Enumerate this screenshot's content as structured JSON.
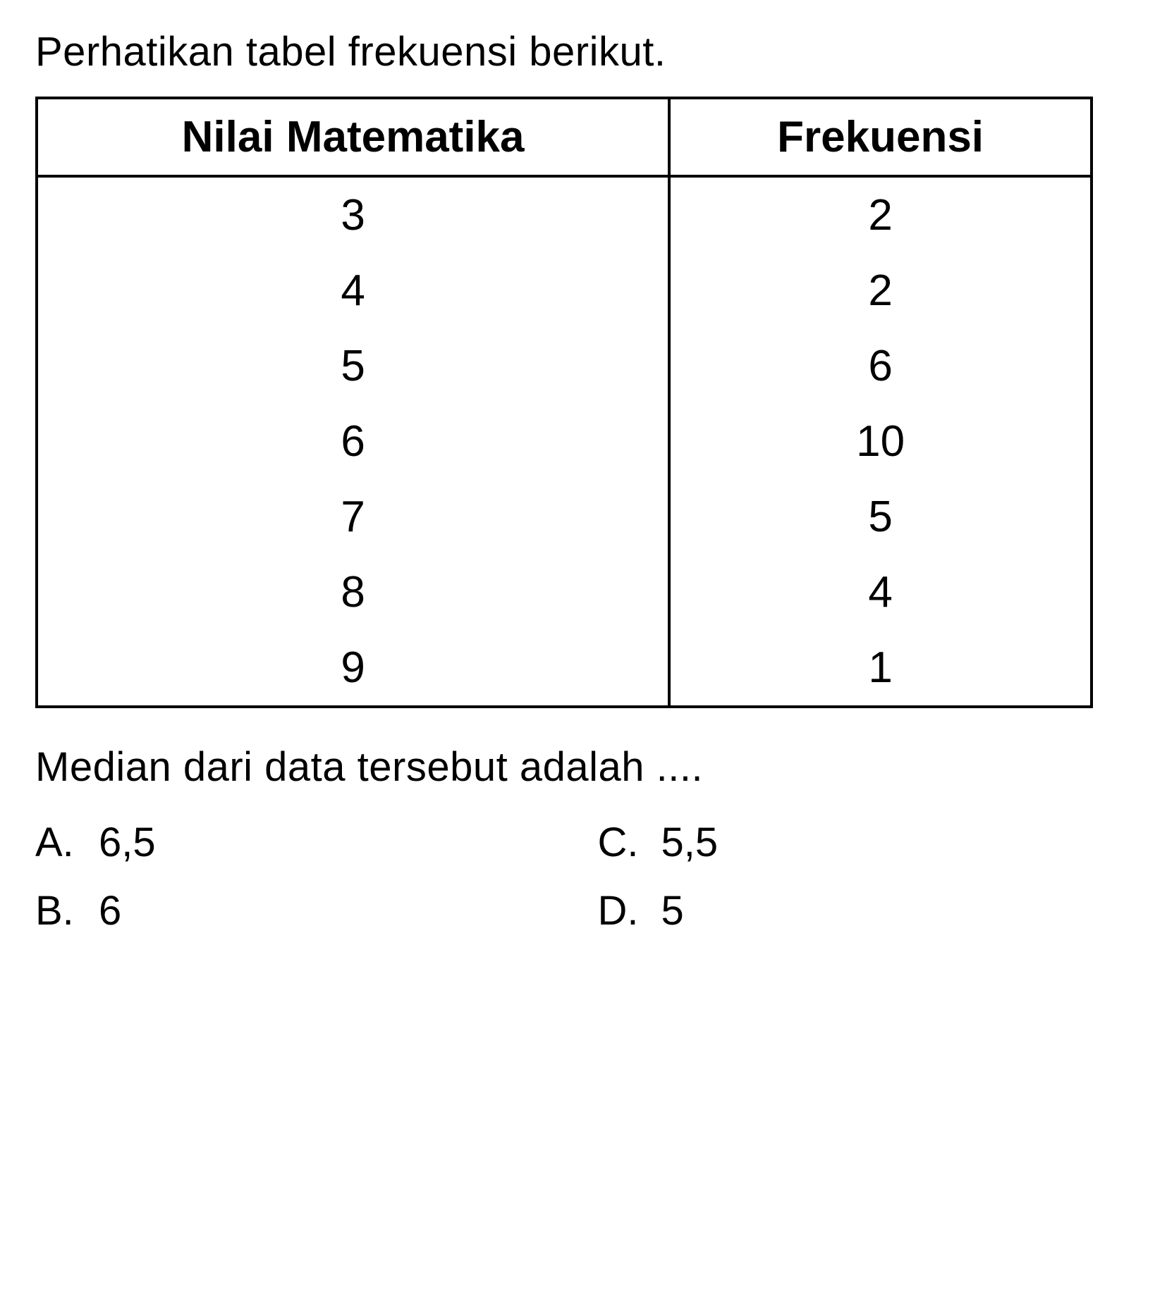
{
  "title": "Perhatikan tabel frekuensi berikut.",
  "table": {
    "headers": {
      "col1": "Nilai Matematika",
      "col2": "Frekuensi"
    },
    "rows": [
      {
        "nilai": "3",
        "frekuensi": "2"
      },
      {
        "nilai": "4",
        "frekuensi": "2"
      },
      {
        "nilai": "5",
        "frekuensi": "6"
      },
      {
        "nilai": "6",
        "frekuensi": "10"
      },
      {
        "nilai": "7",
        "frekuensi": "5"
      },
      {
        "nilai": "8",
        "frekuensi": "4"
      },
      {
        "nilai": "9",
        "frekuensi": "1"
      }
    ]
  },
  "question": "Median dari data tersebut adalah ....",
  "options": {
    "a": {
      "letter": "A.",
      "value": "6,5"
    },
    "b": {
      "letter": "B.",
      "value": "6"
    },
    "c": {
      "letter": "C.",
      "value": "5,5"
    },
    "d": {
      "letter": "D.",
      "value": "5"
    }
  },
  "styling": {
    "background_color": "#ffffff",
    "text_color": "#000000",
    "border_color": "#000000",
    "border_width": 4,
    "title_fontsize": 58,
    "header_fontsize": 62,
    "cell_fontsize": 62,
    "question_fontsize": 58,
    "option_fontsize": 58,
    "font_family": "Arial, Helvetica, sans-serif"
  }
}
